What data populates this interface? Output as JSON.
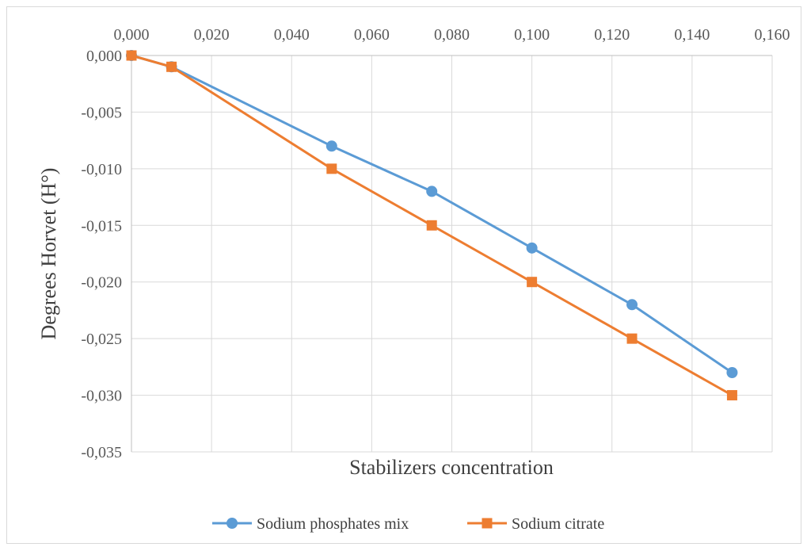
{
  "chart_data": {
    "type": "line",
    "title": "",
    "xlabel": "Stabilizers concentration",
    "ylabel": "Degrees Horvet (H°)",
    "xlim": [
      0,
      0.16
    ],
    "ylim": [
      -0.035,
      0
    ],
    "x_ticks": [
      "0,000",
      "0,020",
      "0,040",
      "0,060",
      "0,080",
      "0,100",
      "0,120",
      "0,140",
      "0,160"
    ],
    "y_ticks": [
      "0,000",
      "-0,005",
      "-0,010",
      "-0,015",
      "-0,020",
      "-0,025",
      "-0,030",
      "-0,035"
    ],
    "x_axis_position": "top",
    "grid": true,
    "legend_position": "bottom",
    "series": [
      {
        "name": "Sodium phosphates mix",
        "color": "#5b9bd5",
        "marker": "circle",
        "x": [
          0,
          0.01,
          0.05,
          0.075,
          0.1,
          0.125,
          0.15
        ],
        "y": [
          0,
          -0.001,
          -0.008,
          -0.012,
          -0.017,
          -0.022,
          -0.028
        ]
      },
      {
        "name": "Sodium citrate",
        "color": "#ed7d31",
        "marker": "square",
        "x": [
          0,
          0.01,
          0.05,
          0.075,
          0.1,
          0.125,
          0.15
        ],
        "y": [
          0,
          -0.001,
          -0.01,
          -0.015,
          -0.02,
          -0.025,
          -0.03
        ]
      }
    ]
  }
}
